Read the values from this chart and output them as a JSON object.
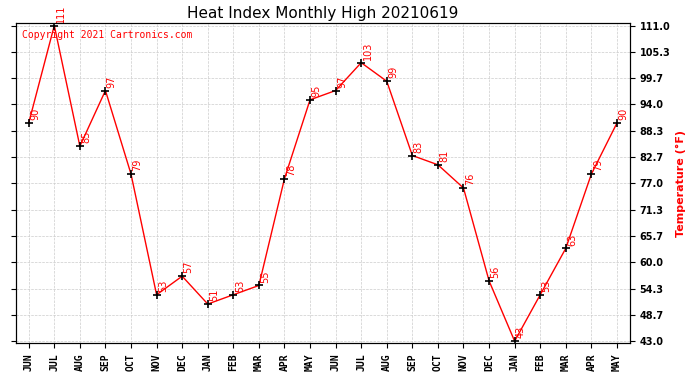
{
  "title": "Heat Index Monthly High 20210619",
  "ylabel": "Temperature (°F)",
  "copyright": "Copyright 2021 Cartronics.com",
  "months": [
    "JUN",
    "JUL",
    "AUG",
    "SEP",
    "OCT",
    "NOV",
    "DEC",
    "JAN",
    "FEB",
    "MAR",
    "APR",
    "MAY",
    "JUN",
    "JUL",
    "AUG",
    "SEP",
    "OCT",
    "NOV",
    "DEC",
    "JAN",
    "FEB",
    "MAR",
    "APR",
    "MAY"
  ],
  "values": [
    90,
    111,
    85,
    97,
    79,
    53,
    57,
    51,
    53,
    55,
    78,
    95,
    97,
    103,
    99,
    83,
    81,
    76,
    56,
    43,
    53,
    63,
    79,
    90
  ],
  "ylim_min": 43.0,
  "ylim_max": 111.0,
  "yticks": [
    43.0,
    48.7,
    54.3,
    60.0,
    65.7,
    71.3,
    77.0,
    82.7,
    88.3,
    94.0,
    99.7,
    105.3,
    111.0
  ],
  "line_color": "red",
  "label_color": "red",
  "title_color": "black",
  "ylabel_color": "red",
  "copyright_color": "red",
  "grid_color": "#cccccc",
  "background_color": "white",
  "marker": "+",
  "marker_size": 6,
  "marker_color": "black",
  "title_fontsize": 11,
  "label_fontsize": 7,
  "axis_label_fontsize": 7,
  "ylabel_fontsize": 8,
  "copyright_fontsize": 7
}
